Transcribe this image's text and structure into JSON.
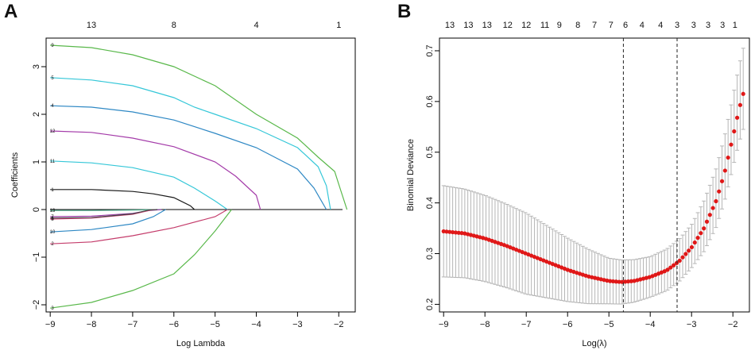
{
  "chart_data": [
    {
      "panel_label": "A",
      "type": "line",
      "title": "",
      "xlabel": "Log Lambda",
      "ylabel": "Coefficients",
      "xlim": [
        -9.1,
        -1.6
      ],
      "ylim": [
        -2.15,
        3.6
      ],
      "x_ticks": [
        -9,
        -8,
        -7,
        -6,
        -5,
        -4,
        -3,
        -2
      ],
      "y_ticks": [
        -2,
        -1,
        0,
        1,
        2,
        3
      ],
      "top_axis": {
        "x": [
          -8.0,
          -6.0,
          -4.0,
          -2.0
        ],
        "labels": [
          "13",
          "8",
          "4",
          "1"
        ]
      },
      "zero_line": 0,
      "series": [
        {
          "name": "9",
          "color": "#59b84a",
          "label_y": 3.45,
          "points": [
            [
              -9.0,
              3.45
            ],
            [
              -8.0,
              3.4
            ],
            [
              -7.0,
              3.25
            ],
            [
              -6.0,
              3.0
            ],
            [
              -5.0,
              2.6
            ],
            [
              -4.0,
              2.0
            ],
            [
              -3.0,
              1.5
            ],
            [
              -2.5,
              1.1
            ],
            [
              -2.1,
              0.8
            ],
            [
              -1.95,
              0.4
            ],
            [
              -1.8,
              0
            ]
          ]
        },
        {
          "name": "5",
          "color": "#35c7d8",
          "label_y": 2.77,
          "points": [
            [
              -9.0,
              2.77
            ],
            [
              -8.0,
              2.72
            ],
            [
              -7.0,
              2.6
            ],
            [
              -6.0,
              2.35
            ],
            [
              -5.5,
              2.15
            ],
            [
              -5.0,
              2.0
            ],
            [
              -4.0,
              1.7
            ],
            [
              -3.0,
              1.3
            ],
            [
              -2.5,
              0.9
            ],
            [
              -2.3,
              0.5
            ],
            [
              -2.2,
              0
            ]
          ]
        },
        {
          "name": "4",
          "color": "#2e88c4",
          "label_y": 2.18,
          "points": [
            [
              -9.0,
              2.18
            ],
            [
              -8.0,
              2.15
            ],
            [
              -7.0,
              2.05
            ],
            [
              -6.0,
              1.88
            ],
            [
              -5.0,
              1.6
            ],
            [
              -4.0,
              1.3
            ],
            [
              -3.0,
              0.85
            ],
            [
              -2.6,
              0.45
            ],
            [
              -2.3,
              0
            ]
          ]
        },
        {
          "name": "12",
          "color": "#a43ba9",
          "label_y": 1.65,
          "points": [
            [
              -9.0,
              1.65
            ],
            [
              -8.0,
              1.62
            ],
            [
              -7.0,
              1.5
            ],
            [
              -6.0,
              1.32
            ],
            [
              -5.0,
              1.0
            ],
            [
              -4.5,
              0.7
            ],
            [
              -4.0,
              0.3
            ],
            [
              -3.9,
              0
            ]
          ]
        },
        {
          "name": "11",
          "color": "#35c7d8",
          "label_y": 1.02,
          "points": [
            [
              -9.0,
              1.02
            ],
            [
              -8.0,
              0.98
            ],
            [
              -7.0,
              0.88
            ],
            [
              -6.0,
              0.68
            ],
            [
              -5.5,
              0.45
            ],
            [
              -5.0,
              0.18
            ],
            [
              -4.7,
              0
            ]
          ]
        },
        {
          "name": "1",
          "color": "#1a1a1a",
          "label_y": 0.42,
          "points": [
            [
              -9.0,
              0.42
            ],
            [
              -8.0,
              0.42
            ],
            [
              -7.0,
              0.38
            ],
            [
              -6.5,
              0.33
            ],
            [
              -6.0,
              0.25
            ],
            [
              -5.6,
              0.08
            ],
            [
              -5.5,
              0
            ]
          ]
        },
        {
          "name": "13",
          "color": "#4cab8a",
          "label_y": -0.02,
          "points": [
            [
              -9.0,
              -0.02
            ],
            [
              -8.0,
              -0.02
            ],
            [
              -7.0,
              -0.01
            ],
            [
              -6.3,
              0
            ]
          ]
        },
        {
          "name": "7",
          "color": "#9b3aa6",
          "label_y": -0.15,
          "points": [
            [
              -9.0,
              -0.15
            ],
            [
              -8.0,
              -0.14
            ],
            [
              -7.0,
              -0.08
            ],
            [
              -6.6,
              -0.02
            ],
            [
              -6.3,
              0
            ]
          ]
        },
        {
          "name": "8",
          "color": "#d9467a",
          "label_y": -0.2,
          "points": [
            [
              -9.0,
              -0.2
            ],
            [
              -8.0,
              -0.18
            ],
            [
              -7.0,
              -0.1
            ],
            [
              -6.6,
              -0.02
            ],
            [
              -6.5,
              0
            ]
          ]
        },
        {
          "name": "6",
          "color": "#444444",
          "label_y": -0.18,
          "points": [
            [
              -9.0,
              -0.18
            ],
            [
              -8.0,
              -0.17
            ],
            [
              -7.0,
              -0.09
            ],
            [
              -6.6,
              -0.01
            ],
            [
              -6.4,
              0
            ]
          ]
        },
        {
          "name": "10",
          "color": "#2e88c4",
          "label_y": -0.47,
          "points": [
            [
              -9.0,
              -0.47
            ],
            [
              -8.0,
              -0.42
            ],
            [
              -7.0,
              -0.3
            ],
            [
              -6.5,
              -0.15
            ],
            [
              -6.2,
              0
            ]
          ]
        },
        {
          "name": "2",
          "color": "#c43c6b",
          "label_y": -0.72,
          "points": [
            [
              -9.0,
              -0.72
            ],
            [
              -8.0,
              -0.68
            ],
            [
              -7.0,
              -0.55
            ],
            [
              -6.0,
              -0.38
            ],
            [
              -5.0,
              -0.15
            ],
            [
              -4.7,
              0
            ]
          ]
        },
        {
          "name": "3",
          "color": "#59b84a",
          "label_y": -2.07,
          "points": [
            [
              -9.0,
              -2.07
            ],
            [
              -8.0,
              -1.95
            ],
            [
              -7.0,
              -1.7
            ],
            [
              -6.0,
              -1.35
            ],
            [
              -5.5,
              -0.95
            ],
            [
              -5.0,
              -0.45
            ],
            [
              -4.6,
              0
            ]
          ]
        }
      ]
    },
    {
      "panel_label": "B",
      "type": "scatter",
      "title": "",
      "xlabel": "Log(λ)",
      "ylabel": "Binomial Deviance",
      "xlim": [
        -9.1,
        -1.6
      ],
      "ylim": [
        0.185,
        0.725
      ],
      "x_ticks": [
        -9,
        -8,
        -7,
        -6,
        -5,
        -4,
        -3,
        -2
      ],
      "y_ticks": [
        0.2,
        0.3,
        0.4,
        0.5,
        0.6,
        0.7
      ],
      "top_axis": {
        "x": [
          -8.85,
          -8.4,
          -7.95,
          -7.45,
          -7.0,
          -6.55,
          -6.2,
          -5.75,
          -5.35,
          -4.95,
          -4.6,
          -4.2,
          -3.75,
          -3.35,
          -2.95,
          -2.6,
          -2.25,
          -1.95
        ],
        "labels": [
          "13",
          "13",
          "13",
          "12",
          "12",
          "11",
          "9",
          "8",
          "7",
          "7",
          "6",
          "4",
          "4",
          "3",
          "3",
          "3",
          "3",
          "1"
        ]
      },
      "vlines": [
        -4.65,
        -3.35
      ],
      "curve_points": [
        [
          -9.0,
          0.344
        ],
        [
          -8.5,
          0.34
        ],
        [
          -8.0,
          0.33
        ],
        [
          -7.5,
          0.316
        ],
        [
          -7.0,
          0.3
        ],
        [
          -6.5,
          0.284
        ],
        [
          -6.0,
          0.268
        ],
        [
          -5.5,
          0.255
        ],
        [
          -5.0,
          0.246
        ],
        [
          -4.7,
          0.244
        ],
        [
          -4.4,
          0.246
        ],
        [
          -4.0,
          0.254
        ],
        [
          -3.6,
          0.267
        ],
        [
          -3.3,
          0.285
        ],
        [
          -3.0,
          0.312
        ],
        [
          -2.7,
          0.35
        ],
        [
          -2.4,
          0.405
        ],
        [
          -2.2,
          0.46
        ],
        [
          -2.0,
          0.53
        ],
        [
          -1.85,
          0.585
        ],
        [
          -1.75,
          0.615
        ]
      ],
      "se_upper_offset_points": [
        [
          -9.0,
          0.09
        ],
        [
          -7.0,
          0.08
        ],
        [
          -5.0,
          0.045
        ],
        [
          -4.0,
          0.04
        ],
        [
          -3.0,
          0.045
        ],
        [
          -2.5,
          0.06
        ],
        [
          -2.0,
          0.08
        ],
        [
          -1.75,
          0.09
        ]
      ],
      "se_lower_offset_points": [
        [
          -9.0,
          0.09
        ],
        [
          -7.0,
          0.08
        ],
        [
          -5.0,
          0.045
        ],
        [
          -4.0,
          0.04
        ],
        [
          -3.0,
          0.04
        ],
        [
          -2.5,
          0.05
        ],
        [
          -2.0,
          0.06
        ],
        [
          -1.75,
          0.07
        ]
      ],
      "n_points": 100,
      "point_color": "#e01818",
      "errorbar_color": "#b5b5b5"
    }
  ]
}
